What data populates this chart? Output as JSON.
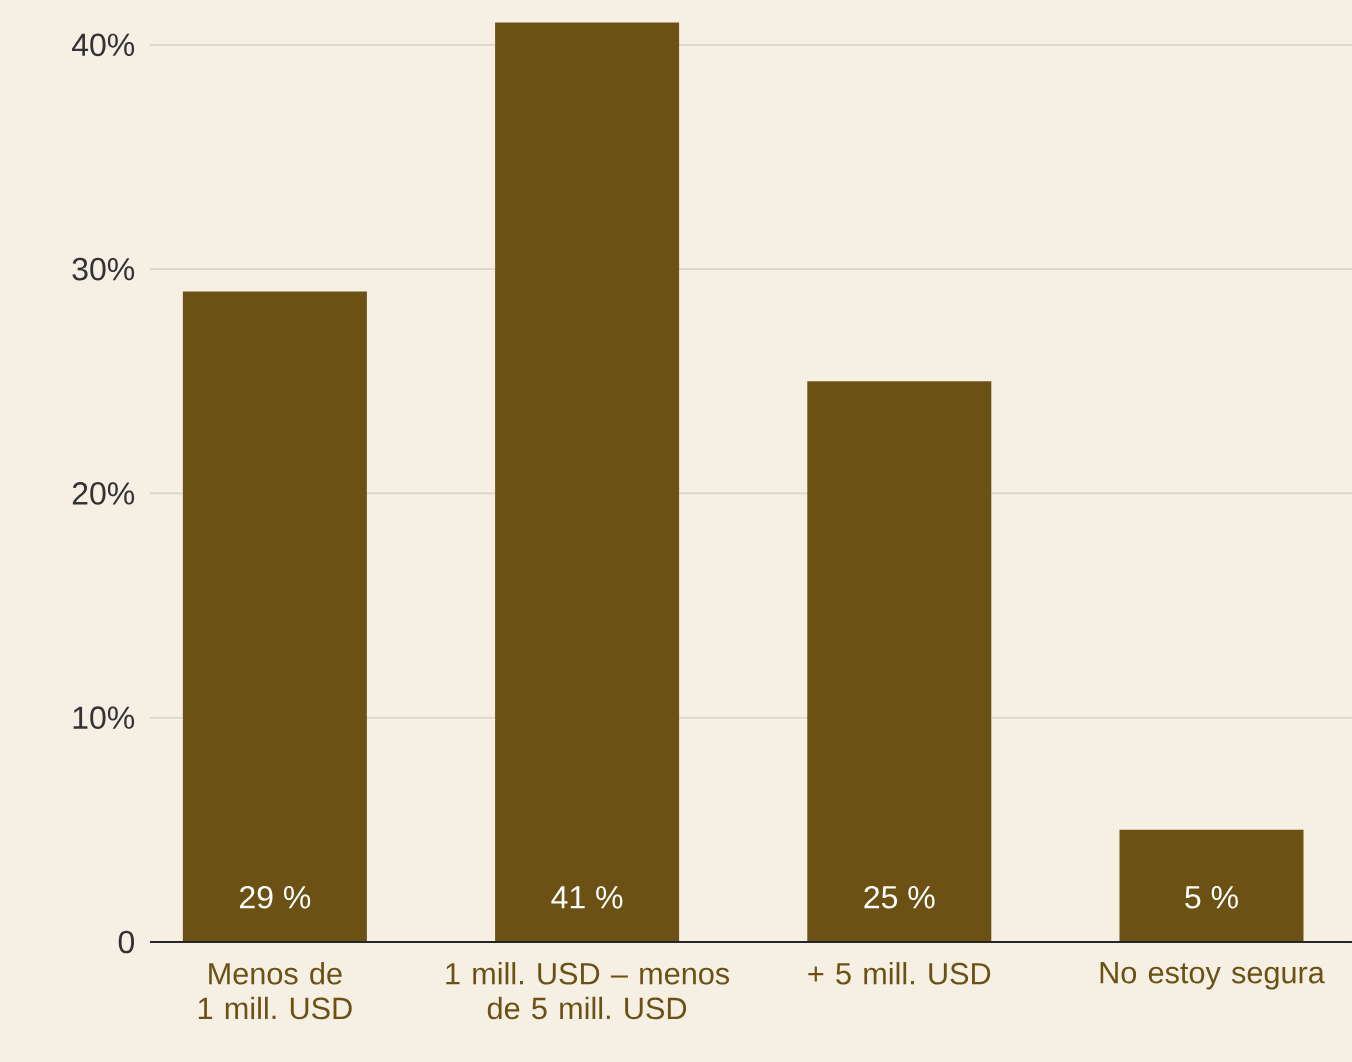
{
  "chart_data": {
    "type": "bar",
    "categories": [
      "Menos de 1 mill. USD",
      "1 mill. USD – menos de 5 mill. USD",
      "+ 5 mill. USD",
      "No estoy segura"
    ],
    "values": [
      29,
      41,
      25,
      5
    ],
    "value_labels": [
      "29 %",
      "41 %",
      "25 %",
      "5 %"
    ],
    "color": "#6b5214",
    "ylim": [
      0,
      42
    ],
    "yticks": [
      0,
      {
        "value": 10,
        "label": "10%"
      },
      {
        "value": 20,
        "label": "20%"
      },
      {
        "value": 30,
        "label": "30%"
      },
      {
        "value": 40,
        "label": "40%"
      }
    ],
    "grid": "y"
  }
}
